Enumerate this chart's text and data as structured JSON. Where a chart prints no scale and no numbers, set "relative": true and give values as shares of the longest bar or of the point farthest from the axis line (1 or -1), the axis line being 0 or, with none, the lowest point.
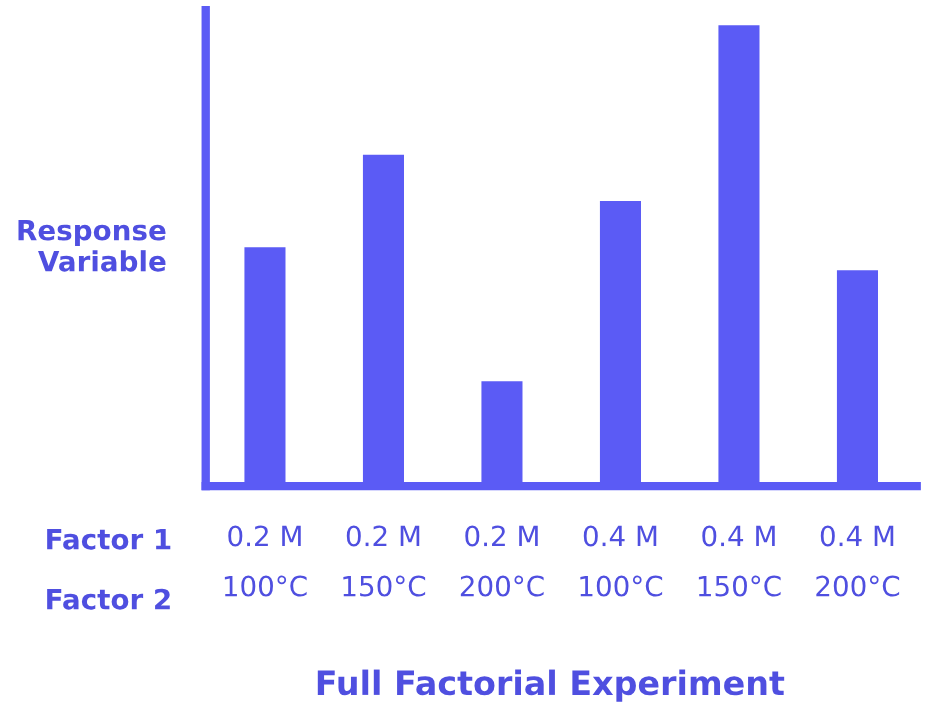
{
  "chart_data": {
    "type": "bar",
    "title": "Full Factorial Experiment",
    "ylabel": "Response\nVariable",
    "categories": [
      "0.2 M\n100°C",
      "0.2 M\n150°C",
      "0.2 M\n200°C",
      "0.4 M\n100°C",
      "0.4 M\n150°C",
      "0.4 M\n200°C"
    ],
    "values": [
      0.52,
      0.72,
      0.23,
      0.62,
      1.0,
      0.47
    ],
    "color": "#5b5bf5",
    "relative": true,
    "annotations": [
      "Factor 1",
      "Factor 2"
    ]
  }
}
